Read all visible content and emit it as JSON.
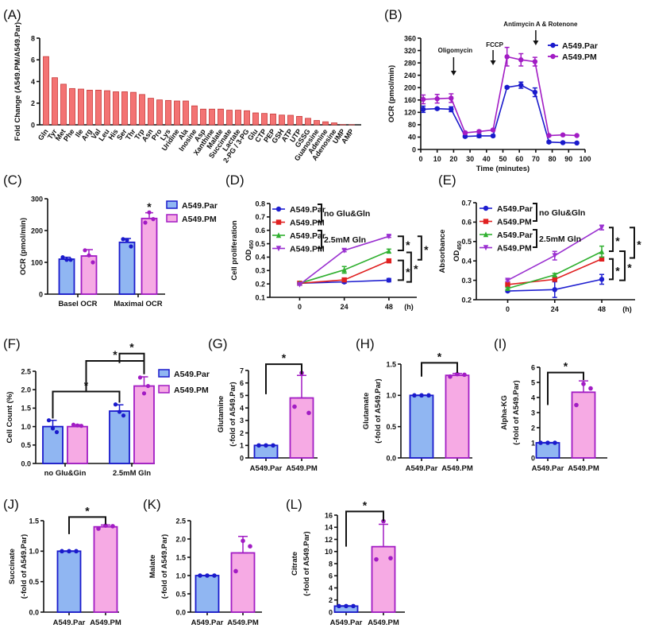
{
  "colors": {
    "par_stroke": "#1a1acc",
    "par_fill": "#90b6f2",
    "pm_stroke": "#a21cc4",
    "pm_fill": "#f6aae4",
    "fold_bar": "#f37373",
    "fold_bar_stroke": "#c83a3a"
  },
  "chart_data": [
    {
      "panel": "(A)",
      "type": "bar",
      "ylabel": [
        "Fold Change (A549.PM/A549.Par)"
      ],
      "ylim": [
        0,
        8
      ],
      "yticks": [
        "0",
        "2",
        "4",
        "6",
        "8"
      ],
      "categories": [
        "Gln",
        "Tyr",
        "Met",
        "Phe",
        "Ile",
        "Arg",
        "Val",
        "Leu",
        "His",
        "Ser",
        "Thr",
        "Trp",
        "Asn",
        "Pro",
        "Lys",
        "Uridine",
        "Ala",
        "Inosine",
        "Asp",
        "Xanthine",
        "Malate",
        "Succinate",
        "Lactate",
        "2-PG / 3-PG",
        "Glu",
        "CTP",
        "PEP",
        "GSH",
        "ATP",
        "UTP",
        "GSSG",
        "Guanosine",
        "Adenine",
        "Adenosine",
        "UMP",
        "AMP"
      ],
      "values": [
        6.3,
        4.35,
        3.75,
        3.35,
        3.3,
        3.2,
        3.2,
        3.15,
        3.05,
        3.05,
        3.0,
        2.8,
        2.45,
        2.3,
        2.25,
        2.2,
        2.2,
        1.75,
        1.45,
        1.45,
        1.45,
        1.35,
        1.35,
        1.3,
        1.1,
        1.05,
        1.0,
        0.9,
        0.88,
        0.78,
        0.6,
        0.4,
        0.28,
        0.18,
        0.02,
        0.01
      ]
    },
    {
      "panel": "(B)",
      "type": "line",
      "xlabel": "Time (minutes)",
      "ylabel": [
        "OCR (pmol/min)"
      ],
      "xlim": [
        0,
        100
      ],
      "xticks": [
        "0",
        "10",
        "20",
        "30",
        "40",
        "50",
        "60",
        "70",
        "80",
        "90",
        "100"
      ],
      "ylim": [
        0,
        360
      ],
      "yticks": [
        "0",
        "40",
        "80",
        "120",
        "160",
        "200",
        "240",
        "280",
        "320",
        "360"
      ],
      "legend": "top-right",
      "x": [
        1.5,
        10,
        18.5,
        27,
        35.5,
        44,
        52.5,
        61,
        69.5,
        78,
        86.5,
        95
      ],
      "series": [
        {
          "name": "A549.Par",
          "marker": "circle",
          "color": "#1a1acc",
          "values": [
            130,
            132,
            130,
            42,
            44,
            44,
            201,
            208,
            185,
            24,
            22,
            21
          ],
          "error": [
            10,
            3,
            8,
            3,
            5,
            3,
            3,
            10,
            14,
            3,
            2,
            2
          ]
        },
        {
          "name": "A549.PM",
          "marker": "circle",
          "color": "#a21cc4",
          "values": [
            162,
            164,
            166,
            54,
            58,
            63,
            300,
            290,
            284,
            45,
            47,
            45
          ],
          "error": [
            14,
            14,
            14,
            4,
            3,
            3,
            30,
            20,
            14,
            3,
            2,
            2
          ]
        }
      ],
      "annotations": [
        {
          "text": "Oligomycin",
          "x": 20
        },
        {
          "text": "FCCP",
          "x": 44
        },
        {
          "text": "Antimycin A & Rotenone",
          "x": 70
        }
      ]
    },
    {
      "panel": "(C)",
      "type": "grouped-bar",
      "ylabel": [
        "OCR (pmol/min)"
      ],
      "ylim": [
        0,
        300
      ],
      "yticks": [
        "0",
        "100",
        "200",
        "300"
      ],
      "categories": [
        "Basel OCR",
        "Maximal OCR"
      ],
      "legend": "top-right",
      "series": [
        {
          "name": "A549.Par",
          "values": [
            110,
            163
          ],
          "error": [
            6,
            12
          ],
          "points": [
            [
              116,
              108,
              108
            ],
            [
              173,
              170,
              150
            ]
          ]
        },
        {
          "name": "A549.PM",
          "values": [
            120,
            238
          ],
          "error": [
            20,
            18
          ],
          "points": [
            [
              138,
              122,
              100
            ],
            [
              225,
              257,
              236
            ]
          ]
        }
      ],
      "significance": [
        "",
        "*"
      ]
    },
    {
      "panel": "(D)",
      "type": "line",
      "ylabel": [
        "Cell proliferation"
      ],
      "ylabel_od": "OD",
      "ylabel_sub": "450",
      "xunit": "(h)",
      "xticks": [
        "0",
        "24",
        "48"
      ],
      "ylim": [
        0.1,
        0.8
      ],
      "yticks": [
        "0.1",
        "0.2",
        "0.3",
        "0.4",
        "0.5",
        "0.6",
        "0.7",
        "0.8"
      ],
      "x": [
        0,
        24,
        48
      ],
      "groups": [
        "no Glu&Gln",
        "2.5mM Gln"
      ],
      "series": [
        {
          "name": "A549.Par",
          "marker": "circle",
          "color": "#1f1fd0",
          "values": [
            0.205,
            0.215,
            0.228
          ],
          "error": [
            0.005,
            0.01,
            0.012
          ]
        },
        {
          "name": "A549.PM",
          "marker": "square",
          "color": "#e02020",
          "values": [
            0.205,
            0.23,
            0.372
          ],
          "error": [
            0.005,
            0.01,
            0.01
          ]
        },
        {
          "name": "A549.Par",
          "marker": "triangle-up",
          "color": "#30b030",
          "values": [
            0.205,
            0.305,
            0.445
          ],
          "error": [
            0.005,
            0.025,
            0.015
          ]
        },
        {
          "name": "A549.PM",
          "marker": "triangle-down",
          "color": "#9a30d0",
          "values": [
            0.195,
            0.45,
            0.555
          ],
          "error": [
            0.005,
            0.01,
            0.008
          ]
        }
      ],
      "significance": [
        "*",
        "*",
        "*",
        "*"
      ]
    },
    {
      "panel": "(E)",
      "type": "line",
      "ylabel": [
        "Absorbance"
      ],
      "ylabel_od": "OD",
      "ylabel_sub": "450",
      "xunit": "(h)",
      "xticks": [
        "0",
        "24",
        "48"
      ],
      "ylim": [
        0.2,
        0.7
      ],
      "yticks": [
        "0.2",
        "0.3",
        "0.4",
        "0.5",
        "0.6",
        "0.7"
      ],
      "x": [
        0,
        24,
        48
      ],
      "groups": [
        "no Glu&Gln",
        "2.5mM Gln"
      ],
      "series": [
        {
          "name": "A549.Par",
          "marker": "circle",
          "color": "#1f1fd0",
          "values": [
            0.245,
            0.252,
            0.305
          ],
          "error": [
            0.005,
            0.04,
            0.025
          ]
        },
        {
          "name": "A549.PM",
          "marker": "square",
          "color": "#e02020",
          "values": [
            0.278,
            0.305,
            0.41
          ],
          "error": [
            0.005,
            0.01,
            0.01
          ]
        },
        {
          "name": "A549.Par",
          "marker": "triangle-up",
          "color": "#30b030",
          "values": [
            0.258,
            0.328,
            0.448
          ],
          "error": [
            0.005,
            0.008,
            0.028
          ]
        },
        {
          "name": "A549.PM",
          "marker": "triangle-down",
          "color": "#9a30d0",
          "values": [
            0.3,
            0.427,
            0.572
          ],
          "error": [
            0.005,
            0.022,
            0.012
          ]
        }
      ],
      "significance": [
        "*",
        "*",
        "*",
        "*"
      ]
    },
    {
      "panel": "(F)",
      "type": "grouped-bar",
      "ylabel": [
        "Cell Count (%)"
      ],
      "ylim": [
        0,
        2.5
      ],
      "yticks": [
        "0.0",
        "0.5",
        "1.0",
        "1.5",
        "2.0",
        "2.5"
      ],
      "categories": [
        "no Glu&Gin",
        "2.5mM Gln"
      ],
      "legend": "top-right",
      "series": [
        {
          "name": "A549.Par",
          "values": [
            1.0,
            1.42
          ],
          "error": [
            0.17,
            0.17
          ],
          "points": [
            [
              1.17,
              0.95,
              0.85
            ],
            [
              1.6,
              1.4,
              1.3
            ]
          ]
        },
        {
          "name": "A549.PM",
          "values": [
            1.0,
            2.1
          ],
          "error": [
            0.05,
            0.25
          ],
          "points": [
            [
              1.05,
              1.03,
              1.02
            ],
            [
              2.33,
              1.9,
              2.1
            ]
          ]
        }
      ],
      "significance": [
        "*",
        "*",
        "*"
      ]
    },
    {
      "panel": "(G)",
      "type": "bar",
      "ylabel": [
        "Glutamine",
        "(-fold of A549.Par)"
      ],
      "ylim": [
        0,
        7
      ],
      "yticks": [
        "0",
        "1",
        "2",
        "3",
        "4",
        "5",
        "6",
        "7"
      ],
      "categories": [
        "A549.Par",
        "A549.PM"
      ],
      "values": [
        1.0,
        4.8
      ],
      "error": [
        0.02,
        1.8
      ],
      "points": [
        [
          1,
          1,
          1
        ],
        [
          4.1,
          6.8,
          3.6
        ]
      ],
      "significance": "*"
    },
    {
      "panel": "(H)",
      "type": "bar",
      "ylabel": [
        "Glutamate",
        "(-fold of A549.Par)"
      ],
      "ylim": [
        0,
        1.5
      ],
      "yticks": [
        "0.0",
        "0.5",
        "1.0",
        "1.5"
      ],
      "categories": [
        "A549.Par",
        "A549.PM"
      ],
      "values": [
        1.0,
        1.32
      ],
      "error": [
        0.005,
        0.03
      ],
      "points": [
        [
          1,
          1,
          1
        ],
        [
          1.3,
          1.34,
          1.33
        ]
      ],
      "significance": "*"
    },
    {
      "panel": "(I)",
      "type": "bar",
      "ylabel": [
        "Alpha-KG",
        "(-fold of A549.Par)"
      ],
      "ylim": [
        0,
        6
      ],
      "yticks": [
        "0",
        "1",
        "2",
        "3",
        "4",
        "5",
        "6"
      ],
      "categories": [
        "A549.Par",
        "A549.PM"
      ],
      "values": [
        1.0,
        4.35
      ],
      "error": [
        0.02,
        0.75
      ],
      "points": [
        [
          1,
          1,
          1
        ],
        [
          3.5,
          4.9,
          4.6
        ]
      ],
      "significance": "*"
    },
    {
      "panel": "(J)",
      "type": "bar",
      "ylabel": [
        "Succinate",
        "(-fold of A549.Par)"
      ],
      "ylim": [
        0,
        1.5
      ],
      "yticks": [
        "0.0",
        "0.5",
        "1.0",
        "1.5"
      ],
      "categories": [
        "A549.Par",
        "A549.PM"
      ],
      "values": [
        1.0,
        1.4
      ],
      "error": [
        0.005,
        0.03
      ],
      "points": [
        [
          1,
          1,
          1
        ],
        [
          1.37,
          1.42,
          1.41
        ]
      ],
      "significance": "*"
    },
    {
      "panel": "(K)",
      "type": "bar",
      "ylabel": [
        "Malate",
        "(-fold of A549.Par)"
      ],
      "ylim": [
        0,
        2.5
      ],
      "yticks": [
        "0.0",
        "0.5",
        "1.0",
        "1.5",
        "2.0",
        "2.5"
      ],
      "categories": [
        "A549.Par",
        "A549.PM"
      ],
      "values": [
        1.0,
        1.62
      ],
      "error": [
        0.005,
        0.45
      ],
      "points": [
        [
          1,
          1,
          1
        ],
        [
          1.12,
          1.95,
          1.8
        ]
      ],
      "significance": ""
    },
    {
      "panel": "(L)",
      "type": "bar",
      "ylabel": [
        "Citrate",
        "(-fold of A549.Par)"
      ],
      "ylim": [
        0,
        16
      ],
      "yticks": [
        "0",
        "2",
        "4",
        "6",
        "8",
        "10",
        "12",
        "14",
        "16"
      ],
      "categories": [
        "A549.Par",
        "A549.PM"
      ],
      "values": [
        1.0,
        10.8
      ],
      "error": [
        0.05,
        3.7
      ],
      "points": [
        [
          1,
          1,
          1
        ],
        [
          8.7,
          15,
          8.9
        ]
      ],
      "significance": "*"
    }
  ]
}
